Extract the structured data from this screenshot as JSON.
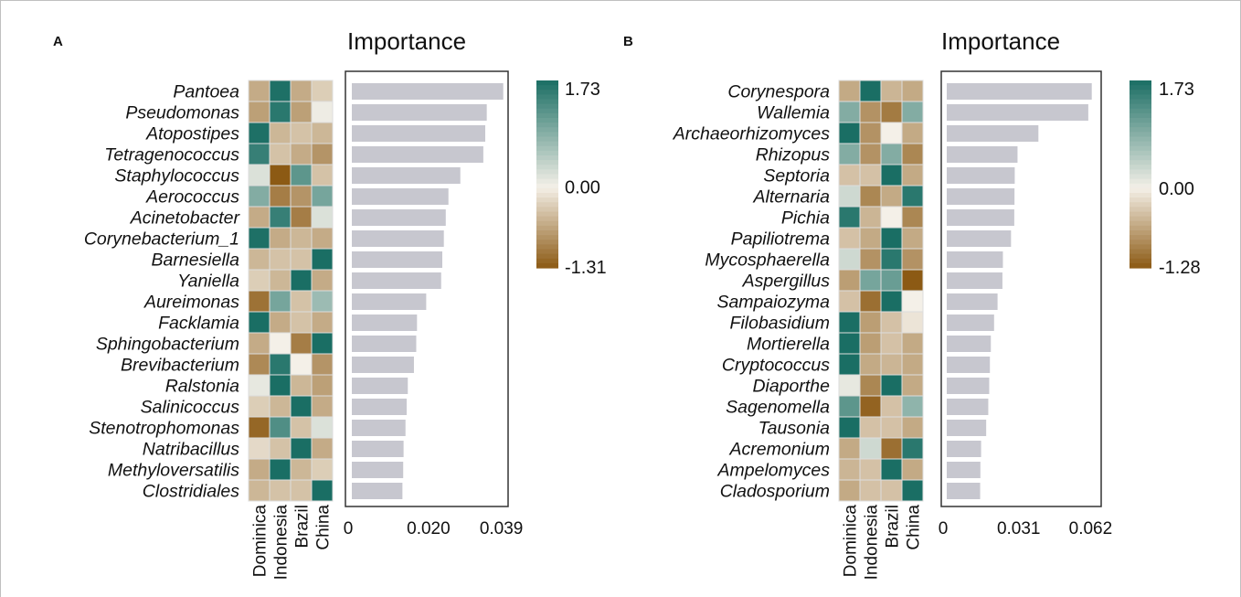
{
  "colors": {
    "low": "#8c5a14",
    "mid": "#f4f0e8",
    "high": "#1a6e64",
    "bar": "#c7c7cf",
    "border": "#dddddd"
  },
  "chart_data": [
    {
      "panel": "A",
      "type": "heatmap+bar",
      "title": "Importance",
      "countries": [
        "Dominica",
        "Indonesia",
        "Brazil",
        "China"
      ],
      "taxa": [
        "Pantoea",
        "Pseudomonas",
        "Atopostipes",
        "Tetragenococcus",
        "Staphylococcus",
        "Aerococcus",
        "Acinetobacter",
        "Corynebacterium_1",
        "Barnesiella",
        "Yaniella",
        "Aureimonas",
        "Facklamia",
        "Sphingobacterium",
        "Brevibacterium",
        "Ralstonia",
        "Salinicoccus",
        "Stenotrophomonas",
        "Natribacillus",
        "Methyloversatilis",
        "Clostridiales"
      ],
      "heat": [
        [
          -0.6,
          1.7,
          -0.6,
          -0.3
        ],
        [
          -0.7,
          1.6,
          -0.7,
          0.05
        ],
        [
          1.7,
          -0.5,
          -0.4,
          -0.5
        ],
        [
          1.5,
          -0.4,
          -0.6,
          -0.8
        ],
        [
          0.2,
          -1.31,
          1.2,
          -0.4
        ],
        [
          0.9,
          -1.0,
          -0.8,
          1.0
        ],
        [
          -0.6,
          1.5,
          -1.0,
          0.2
        ],
        [
          1.7,
          -0.6,
          -0.5,
          -0.6
        ],
        [
          -0.5,
          -0.4,
          -0.4,
          1.73
        ],
        [
          -0.3,
          -0.5,
          1.73,
          -0.6
        ],
        [
          -1.1,
          1.0,
          -0.4,
          0.7
        ],
        [
          1.73,
          -0.6,
          -0.4,
          -0.6
        ],
        [
          -0.6,
          0.0,
          -1.0,
          1.73
        ],
        [
          -0.9,
          1.6,
          0.0,
          -0.8
        ],
        [
          0.1,
          1.73,
          -0.5,
          -0.7
        ],
        [
          -0.3,
          -0.5,
          1.73,
          -0.6
        ],
        [
          -1.2,
          1.3,
          -0.4,
          0.2
        ],
        [
          -0.2,
          -0.4,
          1.73,
          -0.6
        ],
        [
          -0.6,
          1.73,
          -0.5,
          -0.3
        ],
        [
          -0.5,
          -0.4,
          -0.4,
          1.73
        ]
      ],
      "scale": {
        "max": 1.73,
        "mid": 0.0,
        "min": -1.31,
        "labels": [
          "1.73",
          "0.00",
          "-1.31"
        ]
      },
      "importance": [
        0.0395,
        0.0352,
        0.0348,
        0.0343,
        0.0283,
        0.0252,
        0.0245,
        0.024,
        0.0236,
        0.0233,
        0.0194,
        0.017,
        0.0168,
        0.0162,
        0.0146,
        0.0143,
        0.014,
        0.0135,
        0.0134,
        0.0132
      ],
      "xlim": [
        0,
        0.041
      ],
      "xticks": [
        0,
        0.02,
        0.039
      ],
      "xtick_labels": [
        "0",
        "0.020",
        "0.039"
      ]
    },
    {
      "panel": "B",
      "type": "heatmap+bar",
      "title": "Importance",
      "countries": [
        "Dominica",
        "Indonesia",
        "Brazil",
        "China"
      ],
      "taxa": [
        "Corynespora",
        "Wallemia",
        "Archaeorhizomyces",
        "Rhizopus",
        "Septoria",
        "Alternaria",
        "Pichia",
        "Papiliotrema",
        "Mycosphaerella",
        "Aspergillus",
        "Sampaiozyma",
        "Filobasidium",
        "Mortierella",
        "Cryptococcus",
        "Diaporthe",
        "Sagenomella",
        "Tausonia",
        "Acremonium",
        "Ampelomyces",
        "Cladosporium"
      ],
      "heat": [
        [
          -0.6,
          1.73,
          -0.5,
          -0.6
        ],
        [
          0.9,
          -0.8,
          -1.0,
          0.9
        ],
        [
          1.73,
          -0.8,
          0.0,
          -0.6
        ],
        [
          0.9,
          -0.8,
          0.9,
          -0.9
        ],
        [
          -0.4,
          -0.4,
          1.73,
          -0.6
        ],
        [
          0.3,
          -0.9,
          -0.6,
          1.6
        ],
        [
          1.6,
          -0.5,
          0.0,
          -0.9
        ],
        [
          -0.4,
          -0.6,
          1.73,
          -0.6
        ],
        [
          0.3,
          -0.8,
          1.6,
          -0.8
        ],
        [
          -0.7,
          1.0,
          1.1,
          -1.28
        ],
        [
          -0.4,
          -1.1,
          1.73,
          0.0
        ],
        [
          1.73,
          -0.7,
          -0.4,
          -0.1
        ],
        [
          1.73,
          -0.7,
          -0.4,
          -0.6
        ],
        [
          1.73,
          -0.6,
          -0.5,
          -0.6
        ],
        [
          0.1,
          -0.9,
          1.73,
          -0.6
        ],
        [
          1.2,
          -1.2,
          -0.4,
          0.8
        ],
        [
          1.73,
          -0.4,
          -0.4,
          -0.6
        ],
        [
          -0.6,
          0.3,
          -1.1,
          1.6
        ],
        [
          -0.5,
          -0.4,
          1.73,
          -0.6
        ],
        [
          -0.6,
          -0.4,
          -0.4,
          1.73
        ]
      ],
      "scale": {
        "max": 1.73,
        "mid": 0.0,
        "min": -1.28,
        "labels": [
          "1.73",
          "0.00",
          "-1.28"
        ]
      },
      "importance": [
        0.0625,
        0.061,
        0.0395,
        0.0305,
        0.0293,
        0.0292,
        0.0291,
        0.0277,
        0.0242,
        0.024,
        0.0219,
        0.0204,
        0.019,
        0.0186,
        0.0183,
        0.0179,
        0.017,
        0.0148,
        0.0145,
        0.0144
      ],
      "xlim": [
        0,
        0.0638
      ],
      "xticks": [
        0,
        0.031,
        0.062
      ],
      "xtick_labels": [
        "0",
        "0.031",
        "0.062"
      ]
    }
  ]
}
